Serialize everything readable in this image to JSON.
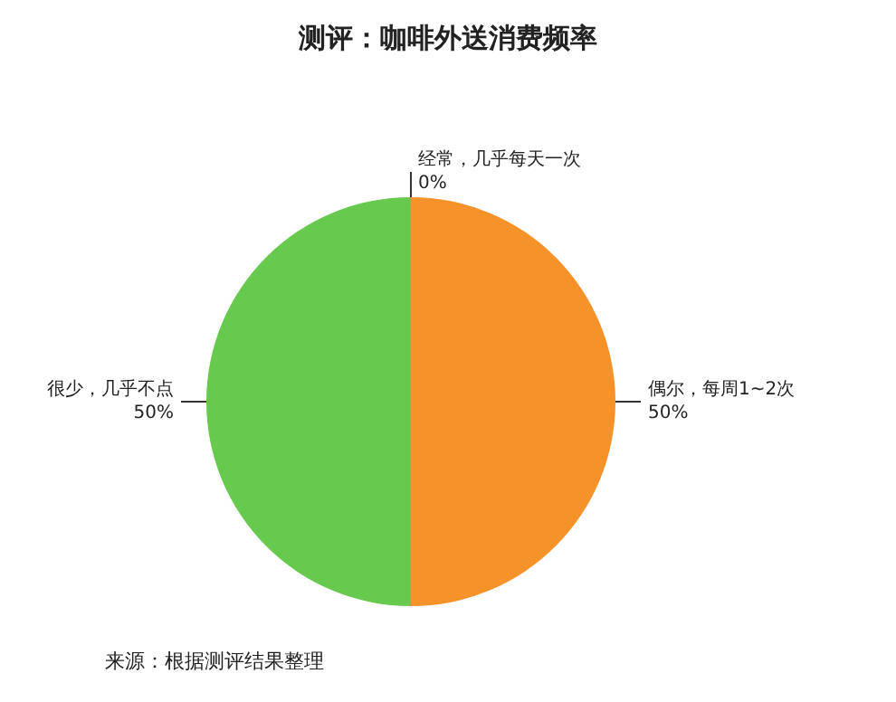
{
  "chart_data": {
    "type": "pie",
    "title": "测评：咖啡外送消费频率",
    "categories": [
      "经常，几乎每天一次",
      "偶尔，每周1~2次",
      "很少，几乎不点"
    ],
    "values": [
      0,
      50,
      50
    ],
    "colors": [
      "#4f81bd",
      "#f5922a",
      "#67c94d"
    ],
    "value_labels": [
      "0%",
      "50%",
      "50%"
    ],
    "legend": false,
    "annotations": [
      "来源：根据测评结果整理"
    ]
  }
}
